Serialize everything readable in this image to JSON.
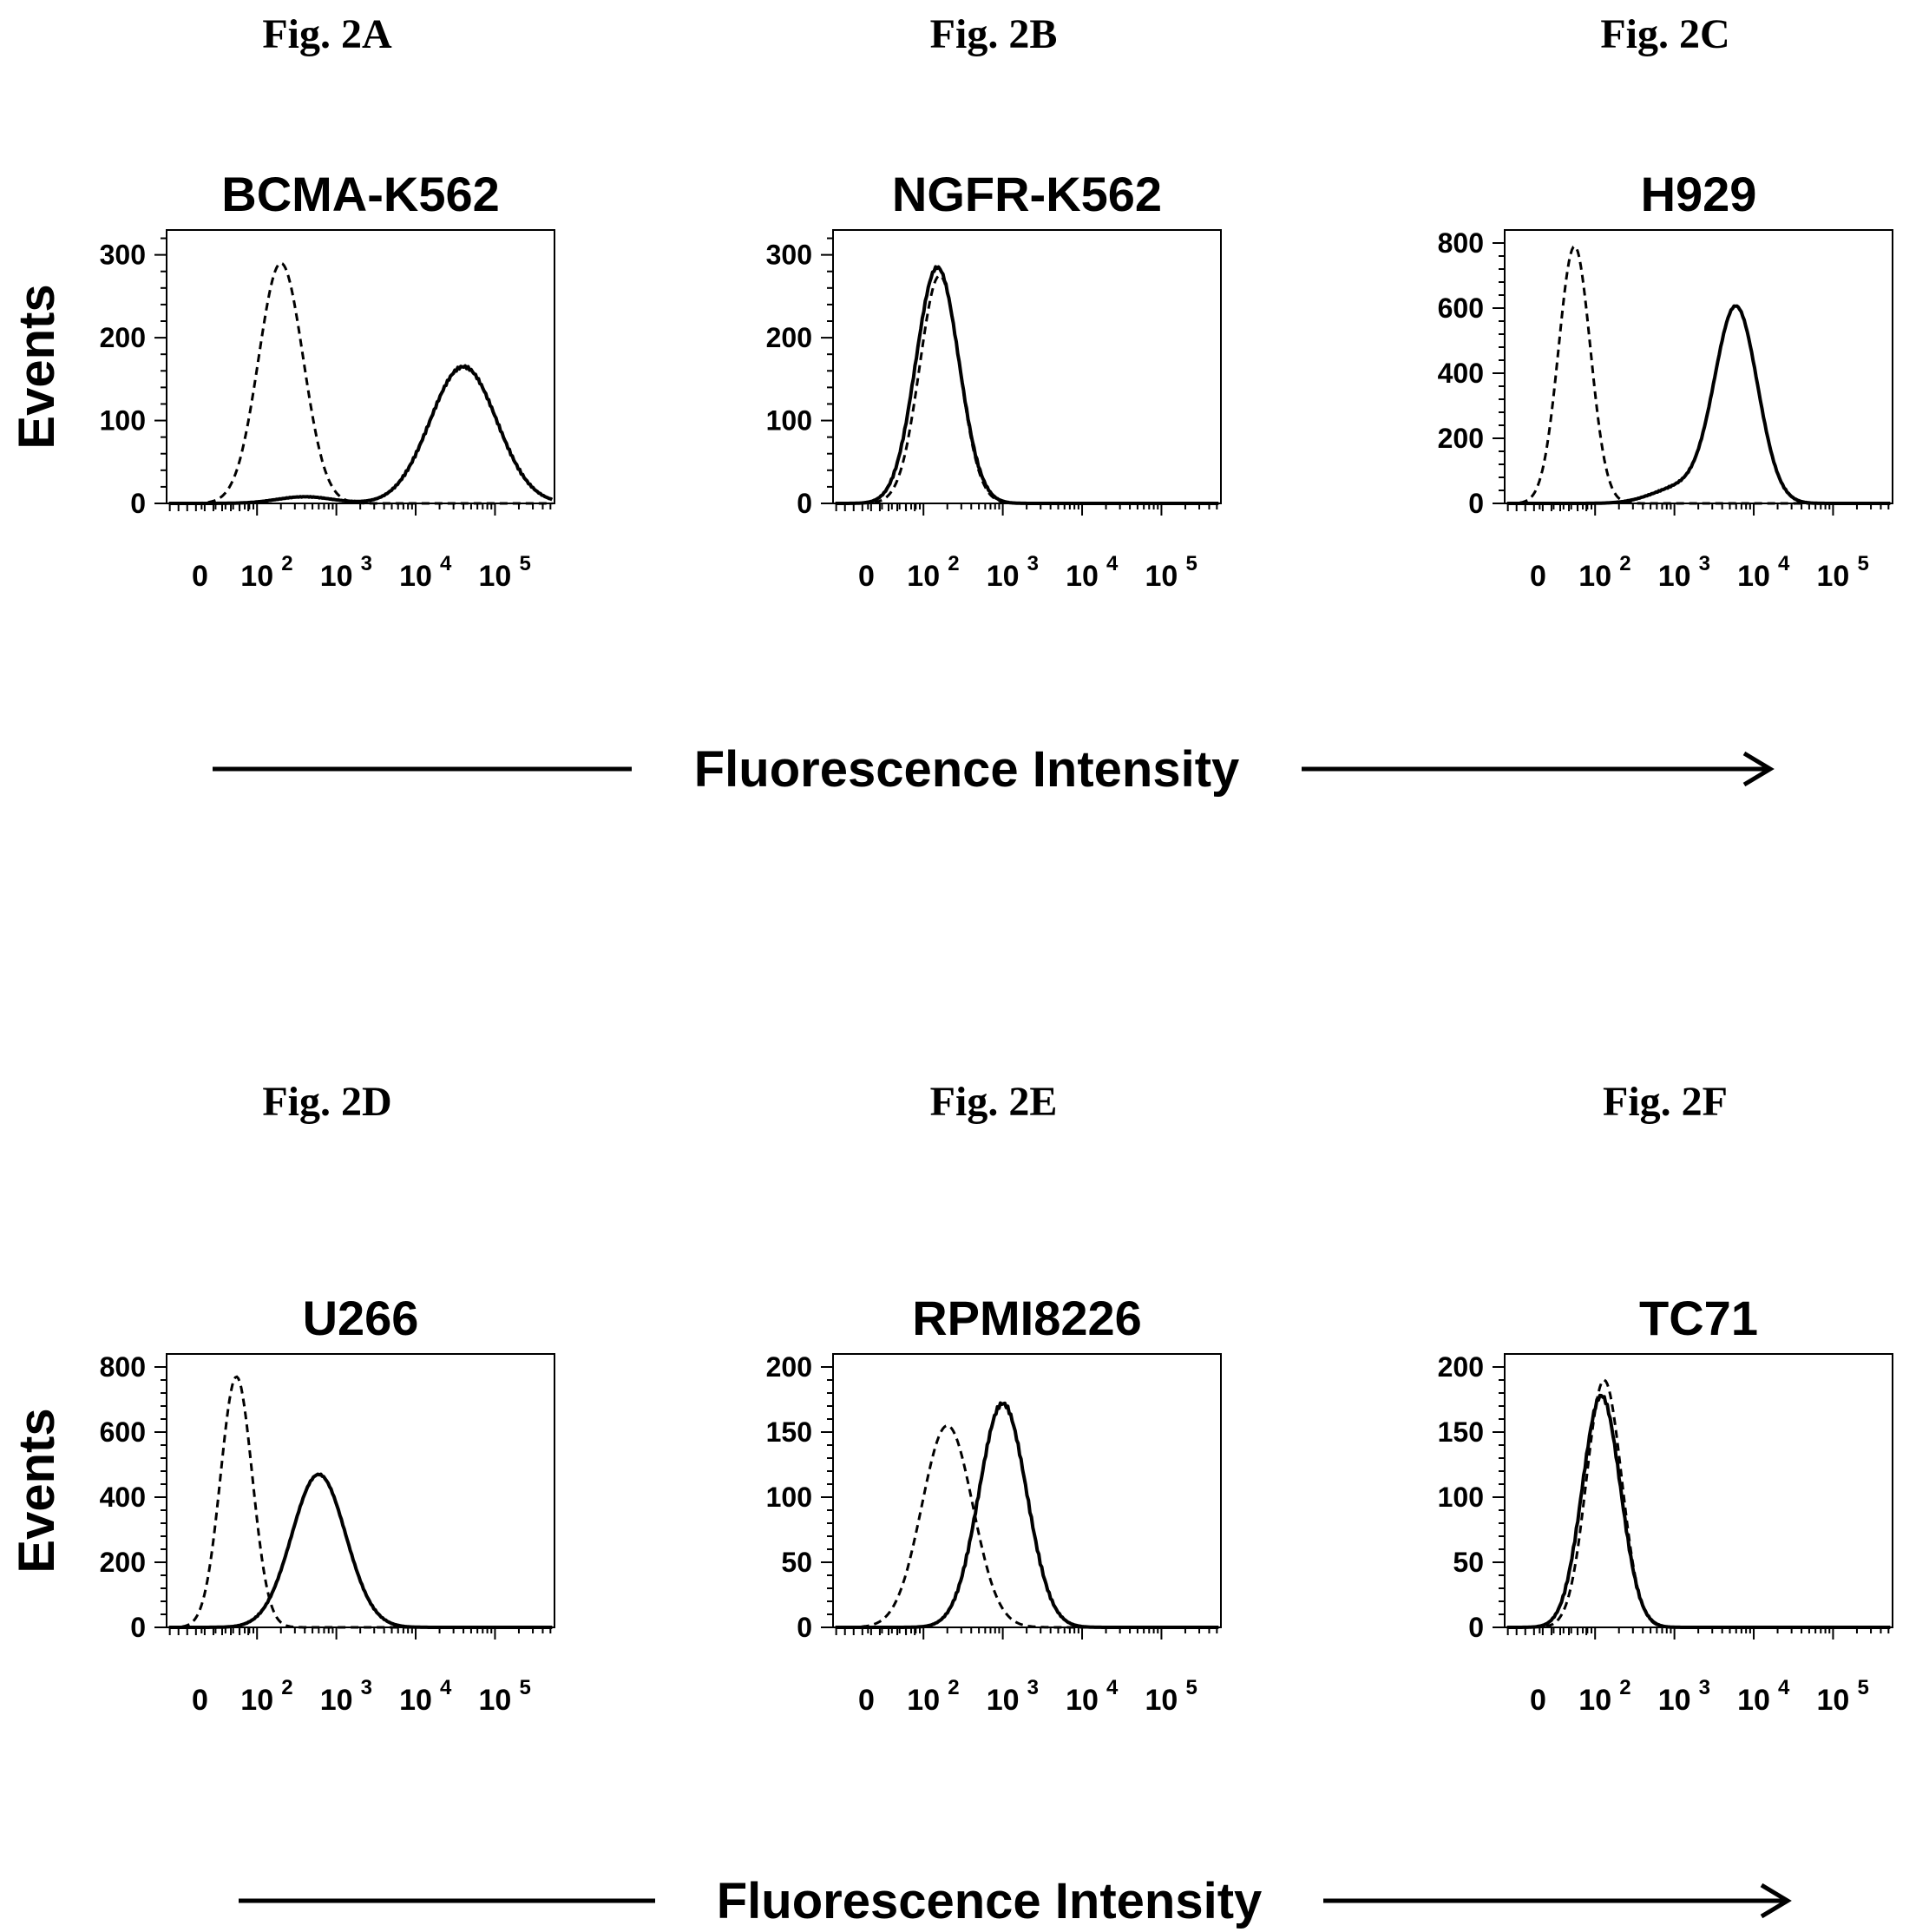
{
  "chart_data": [
    {
      "type": "line",
      "figure_label": "Fig. 2A",
      "title": "BCMA-K562",
      "ylabel": "Events",
      "xlabel": "Fluorescence Intensity",
      "x_scale": "biexponential",
      "x_tick_labels": [
        {
          "base": "0",
          "exp": ""
        },
        {
          "base": "10",
          "exp": "2"
        },
        {
          "base": "10",
          "exp": "3"
        },
        {
          "base": "10",
          "exp": "4"
        },
        {
          "base": "10",
          "exp": "5"
        }
      ],
      "y_ticks": [
        0,
        100,
        200,
        300
      ],
      "ylim": [
        0,
        330
      ],
      "series": [
        {
          "style": "dashed",
          "peaks": [
            {
              "x": 200,
              "y": 290,
              "w": 0.28
            }
          ]
        },
        {
          "style": "solid",
          "peaks": [
            {
              "x": 40000,
              "y": 165,
              "w": 0.42
            },
            {
              "x": 400,
              "y": 8,
              "w": 0.35
            }
          ]
        }
      ]
    },
    {
      "type": "line",
      "figure_label": "Fig. 2B",
      "title": "NGFR-K562",
      "ylabel": "",
      "xlabel": "",
      "x_scale": "biexponential",
      "x_tick_labels": [
        {
          "base": "0",
          "exp": ""
        },
        {
          "base": "10",
          "exp": "2"
        },
        {
          "base": "10",
          "exp": "3"
        },
        {
          "base": "10",
          "exp": "4"
        },
        {
          "base": "10",
          "exp": "5"
        }
      ],
      "y_ticks": [
        0,
        100,
        200,
        300
      ],
      "ylim": [
        0,
        330
      ],
      "series": [
        {
          "style": "dashed",
          "peaks": [
            {
              "x": 160,
              "y": 275,
              "w": 0.25
            }
          ]
        },
        {
          "style": "solid",
          "peaks": [
            {
              "x": 150,
              "y": 285,
              "w": 0.27
            }
          ]
        }
      ]
    },
    {
      "type": "line",
      "figure_label": "Fig. 2C",
      "title": "H929",
      "ylabel": "",
      "xlabel": "",
      "x_scale": "biexponential",
      "x_tick_labels": [
        {
          "base": "0",
          "exp": ""
        },
        {
          "base": "10",
          "exp": "2"
        },
        {
          "base": "10",
          "exp": "3"
        },
        {
          "base": "10",
          "exp": "4"
        },
        {
          "base": "10",
          "exp": "5"
        }
      ],
      "y_ticks": [
        0,
        200,
        400,
        600,
        800
      ],
      "ylim": [
        0,
        840
      ],
      "series": [
        {
          "style": "dashed",
          "peaks": [
            {
              "x": 55,
              "y": 790,
              "w": 0.2
            }
          ]
        },
        {
          "style": "solid",
          "peaks": [
            {
              "x": 6000,
              "y": 600,
              "w": 0.27
            },
            {
              "x": 1200,
              "y": 50,
              "w": 0.35
            }
          ]
        }
      ]
    },
    {
      "type": "line",
      "figure_label": "Fig. 2D",
      "title": "U266",
      "ylabel": "Events",
      "xlabel": "Fluorescence Intensity",
      "x_scale": "biexponential",
      "x_tick_labels": [
        {
          "base": "0",
          "exp": ""
        },
        {
          "base": "10",
          "exp": "2"
        },
        {
          "base": "10",
          "exp": "3"
        },
        {
          "base": "10",
          "exp": "4"
        },
        {
          "base": "10",
          "exp": "5"
        }
      ],
      "y_ticks": [
        0,
        200,
        400,
        600,
        800
      ],
      "ylim": [
        0,
        840
      ],
      "series": [
        {
          "style": "dashed",
          "peaks": [
            {
              "x": 55,
              "y": 770,
              "w": 0.2
            }
          ]
        },
        {
          "style": "solid",
          "peaks": [
            {
              "x": 600,
              "y": 470,
              "w": 0.34
            }
          ]
        }
      ]
    },
    {
      "type": "line",
      "figure_label": "Fig. 2E",
      "title": "RPMI8226",
      "ylabel": "",
      "xlabel": "",
      "x_scale": "biexponential",
      "x_tick_labels": [
        {
          "base": "0",
          "exp": ""
        },
        {
          "base": "10",
          "exp": "2"
        },
        {
          "base": "10",
          "exp": "3"
        },
        {
          "base": "10",
          "exp": "4"
        },
        {
          "base": "10",
          "exp": "5"
        }
      ],
      "y_ticks": [
        0,
        50,
        100,
        150,
        200
      ],
      "ylim": [
        0,
        210
      ],
      "series": [
        {
          "style": "dashed",
          "peaks": [
            {
              "x": 200,
              "y": 155,
              "w": 0.32
            }
          ]
        },
        {
          "style": "solid",
          "peaks": [
            {
              "x": 1000,
              "y": 172,
              "w": 0.3
            }
          ]
        }
      ]
    },
    {
      "type": "line",
      "figure_label": "Fig. 2F",
      "title": "TC71",
      "ylabel": "",
      "xlabel": "",
      "x_scale": "biexponential",
      "x_tick_labels": [
        {
          "base": "0",
          "exp": ""
        },
        {
          "base": "10",
          "exp": "2"
        },
        {
          "base": "10",
          "exp": "3"
        },
        {
          "base": "10",
          "exp": "4"
        },
        {
          "base": "10",
          "exp": "5"
        }
      ],
      "y_ticks": [
        0,
        50,
        100,
        150,
        200
      ],
      "ylim": [
        0,
        210
      ],
      "series": [
        {
          "style": "dashed",
          "peaks": [
            {
              "x": 130,
              "y": 190,
              "w": 0.22
            }
          ]
        },
        {
          "style": "solid",
          "peaks": [
            {
              "x": 120,
              "y": 178,
              "w": 0.24
            }
          ]
        }
      ]
    }
  ],
  "shared_xlabels": [
    "Fluorescence Intensity",
    "Fluorescence Intensity"
  ]
}
